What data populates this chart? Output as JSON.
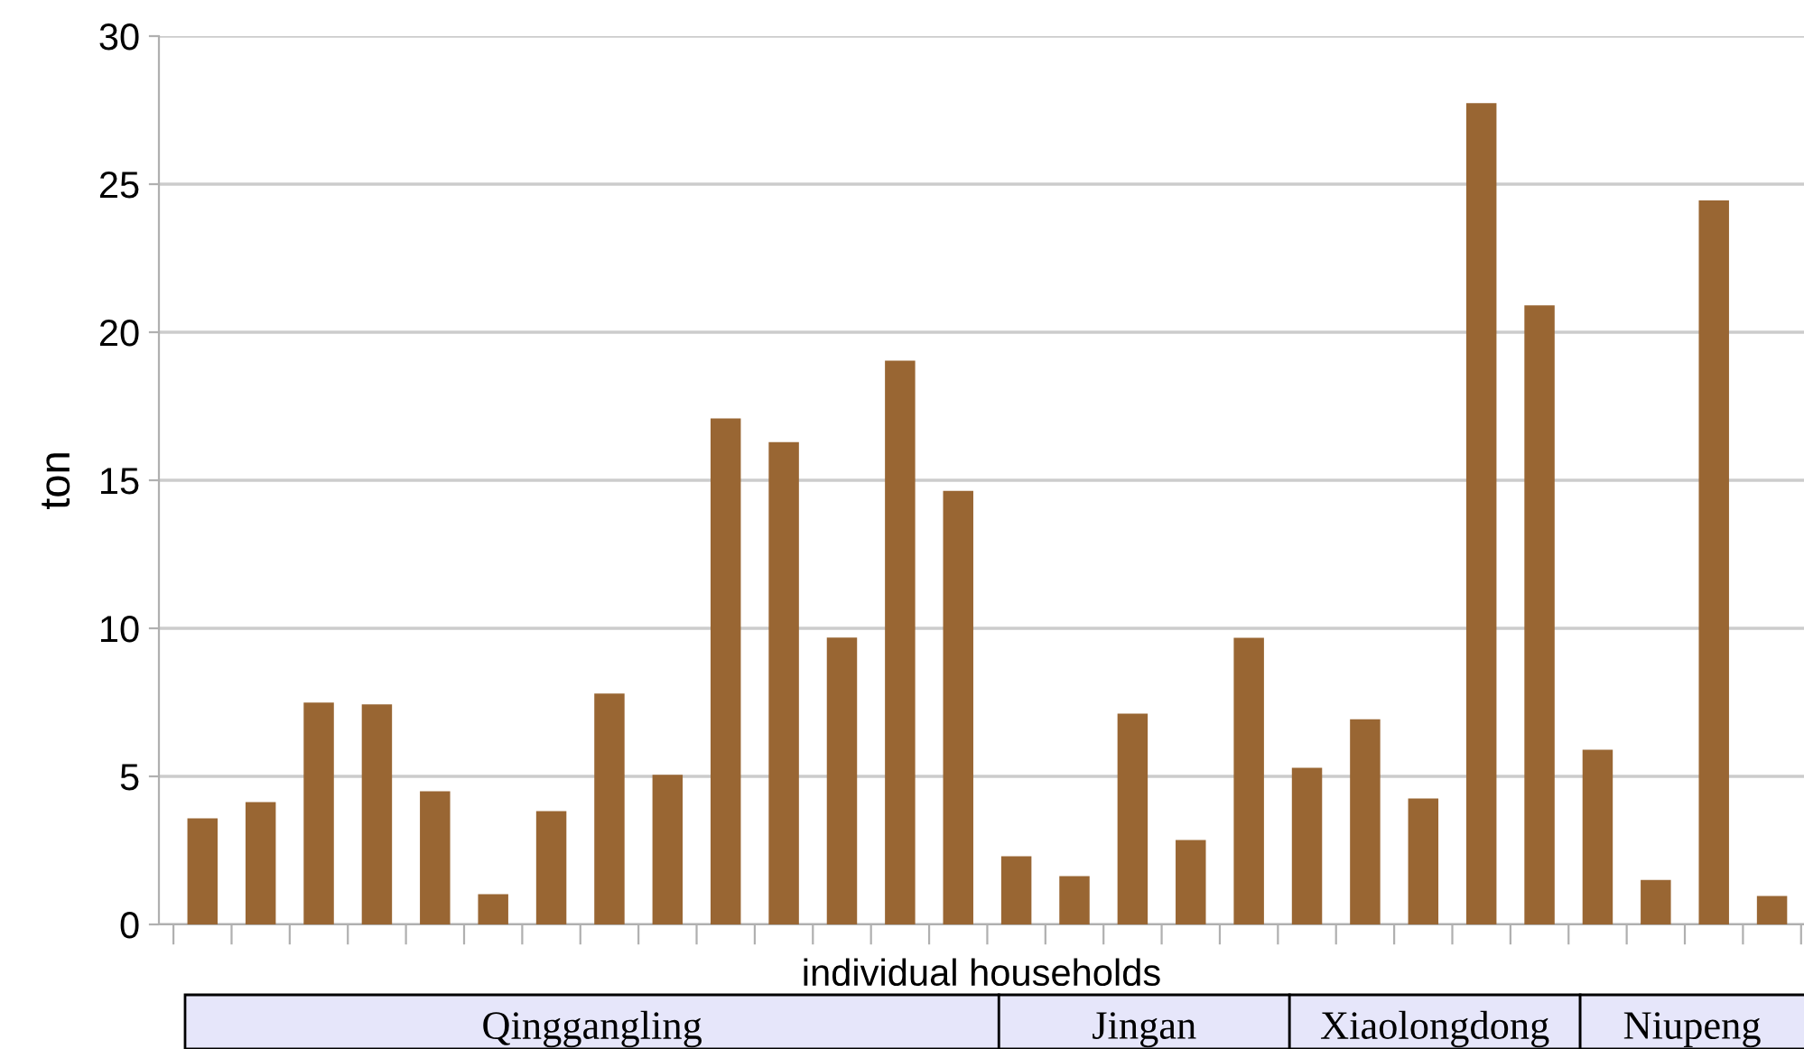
{
  "chart_data": {
    "type": "bar",
    "xlabel": "individual households",
    "ylabel": "ton",
    "categories": [
      null,
      null,
      null,
      null,
      null,
      null,
      null,
      null,
      null,
      null,
      null,
      null,
      null,
      null,
      null,
      null,
      null,
      null,
      null,
      null,
      null,
      null,
      null,
      null,
      null,
      null,
      null,
      null
    ],
    "values": [
      3.58,
      4.13,
      7.49,
      7.43,
      4.5,
      1.02,
      3.83,
      7.8,
      5.05,
      17.09,
      16.29,
      9.69,
      19.04,
      14.64,
      2.3,
      1.63,
      7.12,
      2.85,
      9.68,
      5.29,
      6.93,
      4.25,
      27.74,
      20.91,
      5.9,
      1.5,
      24.45,
      0.96
    ],
    "color": "#996633",
    "ylim": [
      0,
      30
    ],
    "yticks": [
      0,
      5,
      10,
      15,
      20,
      25,
      30
    ],
    "grid": "y",
    "annotations": [
      "Qinggangling",
      "Jingan",
      "Xiaolongdong",
      "Niupeng"
    ]
  }
}
